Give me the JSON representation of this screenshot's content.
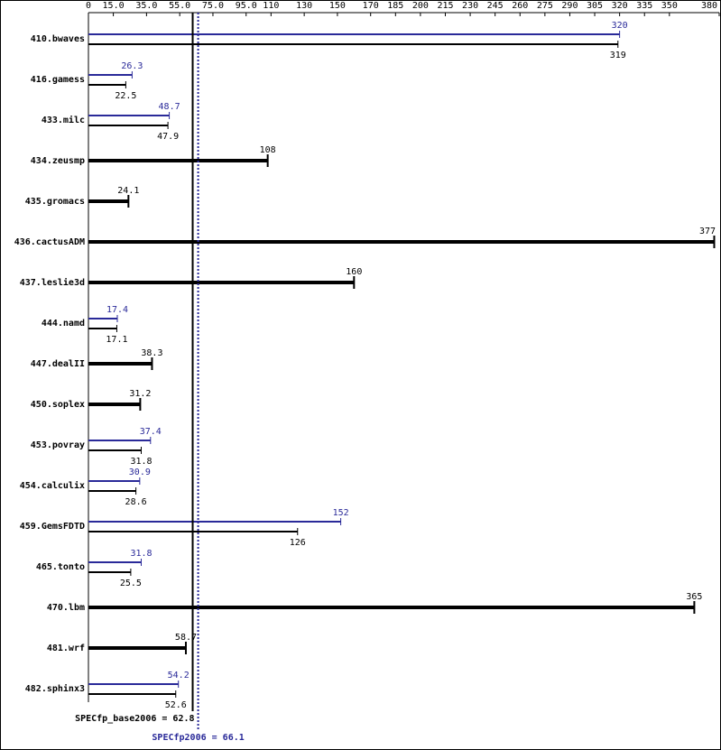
{
  "chart_data": {
    "type": "bar",
    "orientation": "horizontal",
    "categories": [
      "410.bwaves",
      "416.gamess",
      "433.milc",
      "434.zeusmp",
      "435.gromacs",
      "436.cactusADM",
      "437.leslie3d",
      "444.namd",
      "447.dealII",
      "450.soplex",
      "453.povray",
      "454.calculix",
      "459.GemsFDTD",
      "465.tonto",
      "470.lbm",
      "481.wrf",
      "482.sphinx3"
    ],
    "series": [
      {
        "color": "#2a2a99",
        "values": [
          320,
          26.3,
          48.7,
          null,
          null,
          null,
          null,
          17.4,
          null,
          null,
          37.4,
          30.9,
          152,
          31.8,
          null,
          null,
          54.2
        ]
      },
      {
        "color": "#000000",
        "values": [
          319,
          22.5,
          47.9,
          108,
          24.1,
          377,
          160,
          17.1,
          38.3,
          31.2,
          31.8,
          28.6,
          126,
          25.5,
          365,
          58.7,
          52.6
        ]
      }
    ],
    "xlim": [
      0,
      380
    ],
    "xticks": [
      0,
      {
        "value": 15,
        "label": "15.0"
      },
      {
        "value": 35,
        "label": "35.0"
      },
      {
        "value": 55,
        "label": "55.0"
      },
      {
        "value": 75,
        "label": "75.0"
      },
      {
        "value": 95,
        "label": "95.0"
      },
      110,
      130,
      150,
      170,
      185,
      200,
      215,
      230,
      245,
      260,
      275,
      290,
      305,
      320,
      335,
      350,
      380
    ],
    "reference_lines": [
      {
        "label": "SPECfp_base2006 = 62.8",
        "value": 62.8,
        "color": "#000000",
        "style": "solid"
      },
      {
        "label": "SPECfp2006 = 66.1",
        "value": 66.1,
        "color": "#2a2a99",
        "style": "dotted"
      }
    ]
  }
}
